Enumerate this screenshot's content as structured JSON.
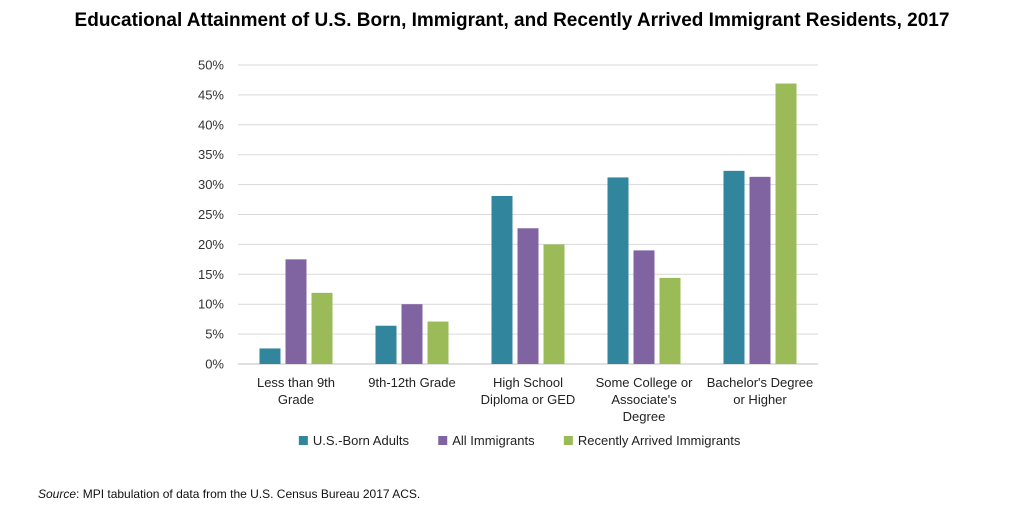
{
  "chart_data": {
    "type": "bar",
    "title": "Educational Attainment of U.S. Born, Immigrant, and Recently Arrived Immigrant Residents, 2017",
    "categories": [
      [
        "Less than 9th",
        "Grade"
      ],
      [
        "9th-12th Grade"
      ],
      [
        "High School",
        "Diploma or GED"
      ],
      [
        "Some College or",
        "Associate's",
        "Degree"
      ],
      [
        "Bachelor's Degree",
        "or Higher"
      ]
    ],
    "series": [
      {
        "name": "U.S.-Born Adults",
        "color": "#31859C",
        "values": [
          2.6,
          6.4,
          28.1,
          31.2,
          32.3
        ]
      },
      {
        "name": "All Immigrants",
        "color": "#8064A2",
        "values": [
          17.5,
          10.0,
          22.7,
          19.0,
          31.3
        ]
      },
      {
        "name": "Recently Arrived Immigrants",
        "color": "#9BBB59",
        "values": [
          11.9,
          7.1,
          20.0,
          14.4,
          46.9
        ]
      }
    ],
    "yticks": [
      "0%",
      "5%",
      "10%",
      "15%",
      "20%",
      "25%",
      "30%",
      "35%",
      "40%",
      "45%",
      "50%"
    ],
    "ylim": [
      0,
      50
    ],
    "grid": true,
    "legend_position": "bottom"
  },
  "source": {
    "label": "Source",
    "text": ": MPI tabulation of data from the U.S. Census Bureau 2017 ACS."
  }
}
